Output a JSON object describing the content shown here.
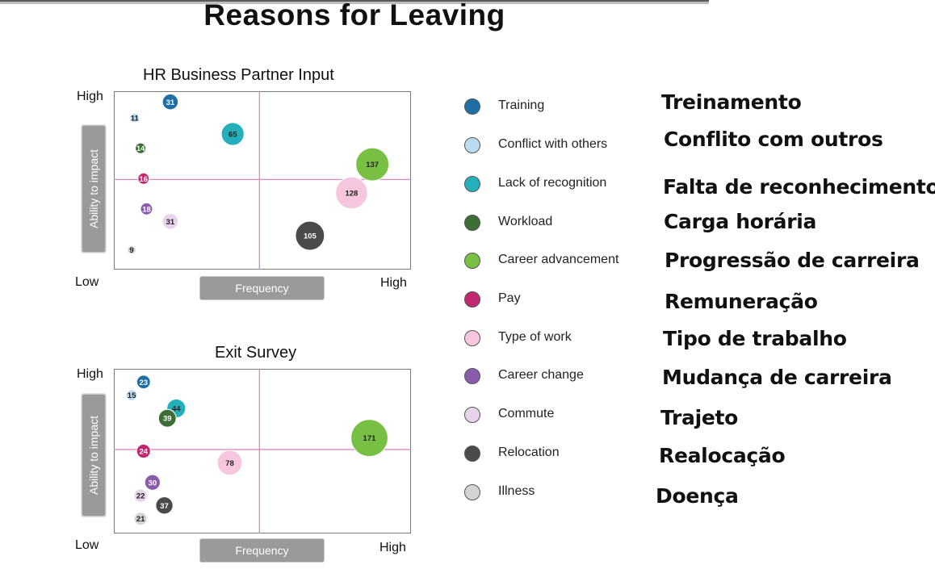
{
  "title": "Reasons for Leaving",
  "colors": {
    "Training": "#1f6fa6",
    "Conflict with others": "#b9dcf2",
    "Lack of recognition": "#23b0bb",
    "Workload": "#3d6e36",
    "Career advancement": "#78c043",
    "Pay": "#c2286f",
    "Type of work": "#f6c7de",
    "Career change": "#8a5aad",
    "Commute": "#e7d3ea",
    "Relocation": "#4a4a4a",
    "Illness": "#d4d4d4"
  },
  "legend": [
    {
      "label": "Training",
      "translation": "Treinamento"
    },
    {
      "label": "Conflict with others",
      "translation": "Conflito com outros"
    },
    {
      "label": "Lack of recognition",
      "translation": "Falta de reconhecimento"
    },
    {
      "label": "Workload",
      "translation": "Carga horária"
    },
    {
      "label": "Career advancement",
      "translation": "Progressão de carreira"
    },
    {
      "label": "Pay",
      "translation": "Remuneração"
    },
    {
      "label": "Type of work",
      "translation": "Tipo de trabalho"
    },
    {
      "label": "Career change",
      "translation": "Mudança de carreira"
    },
    {
      "label": "Commute",
      "translation": "Trajeto"
    },
    {
      "label": "Relocation",
      "translation": "Realocação"
    },
    {
      "label": "Illness",
      "translation": "Doença"
    }
  ],
  "chart_data": [
    {
      "type": "scatter",
      "title": "HR Business Partner Input",
      "xlabel": "Frequency",
      "ylabel": "Ability to impact",
      "x_low": "Low",
      "x_high": "High",
      "y_high": "High",
      "xlim": [
        0,
        1
      ],
      "ylim": [
        0,
        1
      ],
      "points": [
        {
          "series": "Training",
          "x": 0.19,
          "y": 0.94,
          "value": 31
        },
        {
          "series": "Conflict with others",
          "x": 0.07,
          "y": 0.85,
          "value": 11
        },
        {
          "series": "Lack of recognition",
          "x": 0.4,
          "y": 0.76,
          "value": 65
        },
        {
          "series": "Workload",
          "x": 0.09,
          "y": 0.68,
          "value": 14
        },
        {
          "series": "Career advancement",
          "x": 0.87,
          "y": 0.59,
          "value": 137
        },
        {
          "series": "Pay",
          "x": 0.1,
          "y": 0.51,
          "value": 16
        },
        {
          "series": "Type of work",
          "x": 0.8,
          "y": 0.43,
          "value": 128
        },
        {
          "series": "Career change",
          "x": 0.11,
          "y": 0.34,
          "value": 18
        },
        {
          "series": "Commute",
          "x": 0.19,
          "y": 0.27,
          "value": 31
        },
        {
          "series": "Relocation",
          "x": 0.66,
          "y": 0.19,
          "value": 105
        },
        {
          "series": "Illness",
          "x": 0.06,
          "y": 0.11,
          "value": 9
        }
      ]
    },
    {
      "type": "scatter",
      "title": "Exit Survey",
      "xlabel": "Frequency",
      "ylabel": "Ability to impact",
      "x_low": "Low",
      "x_high": "High",
      "y_high": "High",
      "xlim": [
        0,
        1
      ],
      "ylim": [
        0,
        1
      ],
      "points": [
        {
          "series": "Training",
          "x": 0.1,
          "y": 0.92,
          "value": 23
        },
        {
          "series": "Conflict with others",
          "x": 0.06,
          "y": 0.84,
          "value": 15
        },
        {
          "series": "Lack of recognition",
          "x": 0.21,
          "y": 0.76,
          "value": 44
        },
        {
          "series": "Workload",
          "x": 0.18,
          "y": 0.7,
          "value": 39
        },
        {
          "series": "Career advancement",
          "x": 0.86,
          "y": 0.58,
          "value": 171
        },
        {
          "series": "Pay",
          "x": 0.1,
          "y": 0.5,
          "value": 24
        },
        {
          "series": "Type of work",
          "x": 0.39,
          "y": 0.43,
          "value": 78
        },
        {
          "series": "Career change",
          "x": 0.13,
          "y": 0.31,
          "value": 30
        },
        {
          "series": "Commute",
          "x": 0.09,
          "y": 0.23,
          "value": 22
        },
        {
          "series": "Relocation",
          "x": 0.17,
          "y": 0.17,
          "value": 37
        },
        {
          "series": "Illness",
          "x": 0.09,
          "y": 0.09,
          "value": 21
        }
      ]
    }
  ]
}
